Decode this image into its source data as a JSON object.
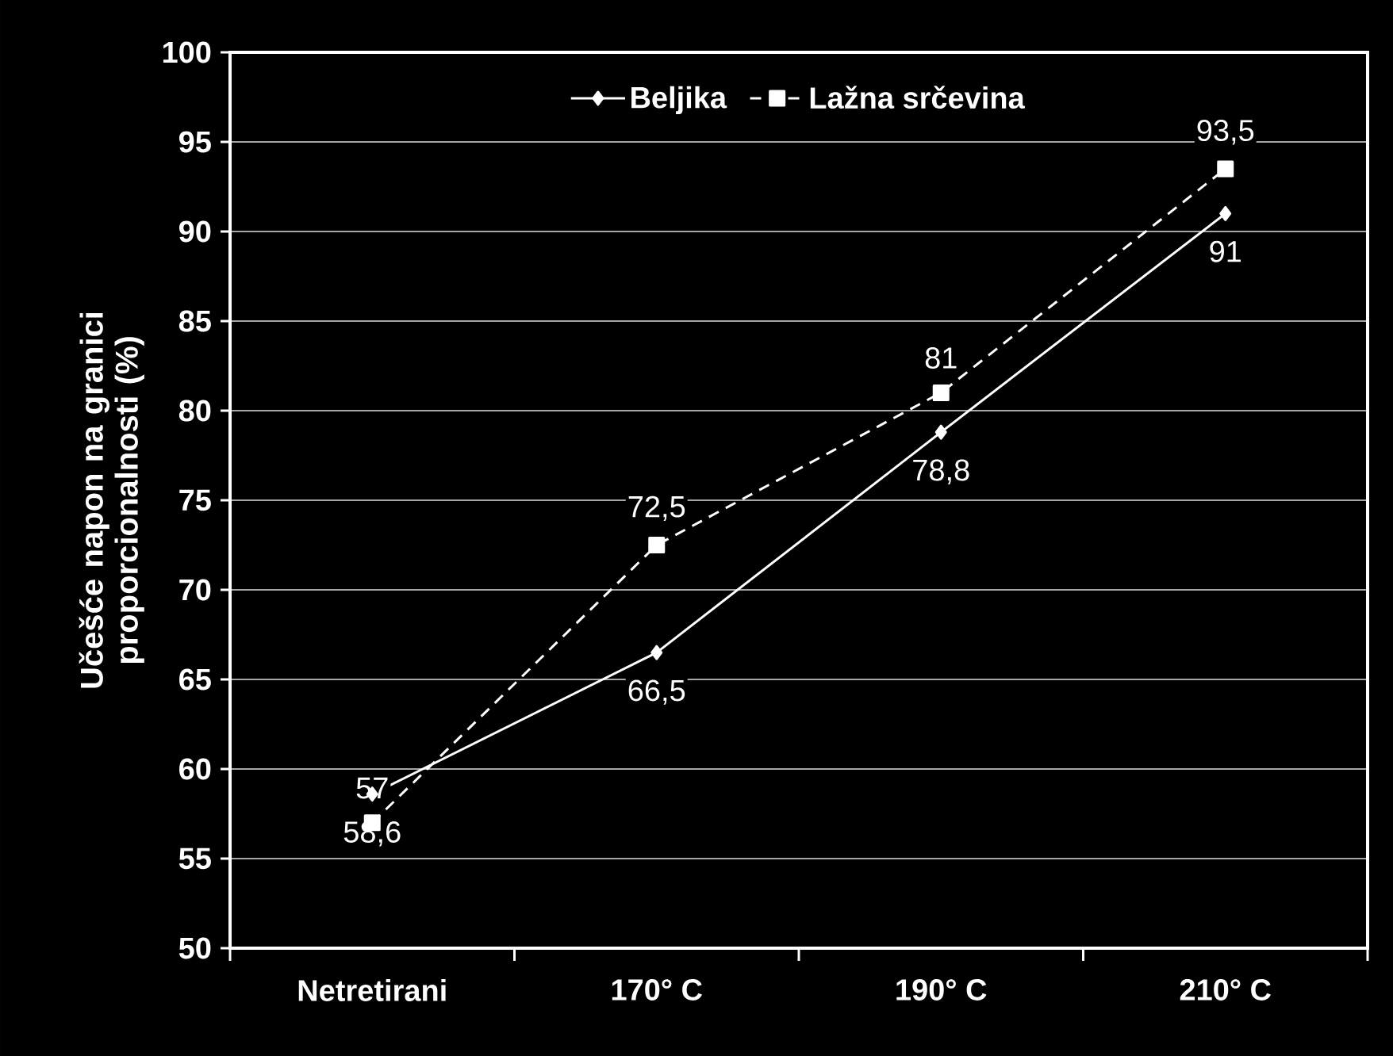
{
  "chart_data": {
    "type": "line",
    "ylabel": "Učešće napon na granici proporcionalnosti (%)",
    "categories": [
      "Netretirani",
      "170° C",
      "190° C",
      "210° C"
    ],
    "series": [
      {
        "name": "Beljika",
        "color": "#ffffff",
        "marker": "diamond",
        "line_style": "solid",
        "values": [
          58.6,
          66.5,
          78.8,
          91
        ],
        "value_labels": [
          "58,6",
          "66,5",
          "78,8",
          "91"
        ]
      },
      {
        "name": "Lažna srčevina",
        "color": "#ffffff",
        "marker": "square",
        "line_style": "dashed",
        "values": [
          57,
          72.5,
          81,
          93.5
        ],
        "value_labels": [
          "57",
          "72,5",
          "81",
          "93,5"
        ]
      }
    ],
    "ylim": [
      50,
      100
    ],
    "yticks": [
      50,
      55,
      60,
      65,
      70,
      75,
      80,
      85,
      90,
      95,
      100
    ],
    "grid": "y",
    "legend": "top"
  }
}
